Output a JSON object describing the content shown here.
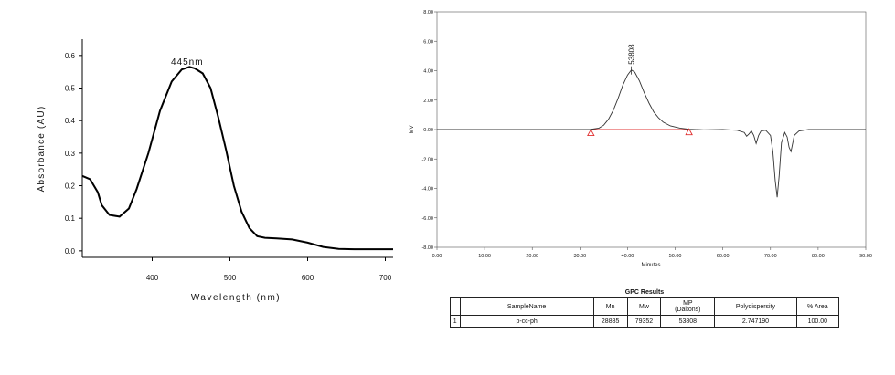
{
  "chart_data": [
    {
      "type": "line",
      "title": "",
      "xlabel": "Wavelength  (nm)",
      "ylabel": "Absorbance (AU)",
      "xlim": [
        310,
        710
      ],
      "ylim": [
        -0.02,
        0.65
      ],
      "x_ticks": [
        "400",
        "500",
        "600",
        "700"
      ],
      "y_ticks": [
        "0.0",
        "0.1",
        "0.2",
        "0.3",
        "0.4",
        "0.5",
        "0.6"
      ],
      "annotations": [
        {
          "x": 445,
          "y": 0.58,
          "text": "445nm"
        }
      ],
      "series": [
        {
          "x": [
            310,
            320,
            330,
            335,
            345,
            358,
            370,
            380,
            395,
            410,
            425,
            438,
            448,
            455,
            465,
            475,
            485,
            495,
            505,
            515,
            525,
            535,
            545,
            560,
            580,
            600,
            620,
            640,
            660,
            710
          ],
          "values": [
            0.23,
            0.22,
            0.18,
            0.14,
            0.11,
            0.105,
            0.13,
            0.19,
            0.3,
            0.43,
            0.52,
            0.557,
            0.565,
            0.56,
            0.545,
            0.5,
            0.41,
            0.31,
            0.2,
            0.12,
            0.07,
            0.045,
            0.04,
            0.038,
            0.035,
            0.025,
            0.012,
            0.006,
            0.005,
            0.005
          ]
        }
      ]
    },
    {
      "type": "line",
      "title": "",
      "xlabel": "Minutes",
      "ylabel": "MV",
      "xlim": [
        0,
        90
      ],
      "ylim": [
        -8,
        8
      ],
      "x_ticks": [
        "0.00",
        "10.00",
        "20.00",
        "30.00",
        "40.00",
        "50.00",
        "60.00",
        "70.00",
        "80.00",
        "90.00"
      ],
      "y_ticks": [
        "-8.00",
        "-6.00",
        "-4.00",
        "-2.00",
        "0.00",
        "2.00",
        "4.00",
        "6.00",
        "8.00"
      ],
      "annotations": [
        {
          "x": 40.8,
          "y": 4.05,
          "text": "53808"
        }
      ],
      "baseline_markers": [
        {
          "x": 32.3,
          "y": -0.25
        },
        {
          "x": 52.9,
          "y": -0.2
        }
      ],
      "series": [
        {
          "x": [
            0,
            30,
            32,
            34,
            35,
            36,
            37,
            38,
            39,
            40,
            40.8,
            41.5,
            42.5,
            43.5,
            44.5,
            45.5,
            46.5,
            47.5,
            49,
            51,
            53,
            56,
            60,
            63,
            64.5,
            65,
            65.5,
            66,
            66.5,
            67,
            67.5,
            68,
            69,
            70,
            70.5,
            71,
            71.4,
            71.8,
            72.3,
            73,
            73.5,
            73.9,
            74.3,
            75,
            76,
            78,
            82,
            90
          ],
          "values": [
            0,
            0,
            0,
            0.1,
            0.3,
            0.7,
            1.3,
            2.1,
            3.0,
            3.7,
            4.05,
            3.9,
            3.3,
            2.5,
            1.8,
            1.2,
            0.8,
            0.5,
            0.25,
            0.1,
            0.02,
            -0.02,
            0.0,
            -0.05,
            -0.2,
            -0.45,
            -0.3,
            -0.1,
            -0.4,
            -0.95,
            -0.4,
            -0.1,
            -0.05,
            -0.4,
            -1.5,
            -3.5,
            -4.6,
            -3.2,
            -0.9,
            -0.2,
            -0.5,
            -1.2,
            -1.5,
            -0.4,
            -0.1,
            0,
            0,
            0
          ]
        }
      ],
      "table": {
        "title": "GPC Results",
        "headers": [
          "",
          "SampleName",
          "Mn",
          "Mw",
          "MP",
          "(Daltons)",
          "Polydispersity",
          "% Area"
        ],
        "row": [
          "1",
          "p-cc-ph",
          "28885",
          "79352",
          "53808",
          "2.747190",
          "100.00"
        ]
      }
    }
  ]
}
